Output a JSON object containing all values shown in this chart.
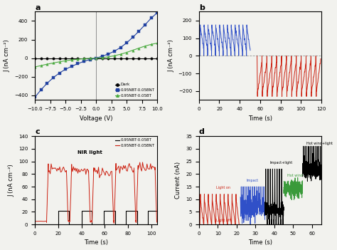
{
  "panel_a": {
    "voltage": [
      -10,
      -9,
      -8,
      -7,
      -6,
      -5,
      -4,
      -3,
      -2,
      -1,
      0,
      1,
      2,
      3,
      4,
      5,
      6,
      7,
      8,
      9,
      10
    ],
    "dark": [
      0,
      0,
      0,
      0,
      0,
      0,
      0,
      0,
      0,
      0,
      0,
      0,
      0,
      0,
      0,
      0,
      0,
      0,
      0,
      0,
      0
    ],
    "nbt_bnt": [
      -420,
      -340,
      -270,
      -210,
      -160,
      -120,
      -88,
      -60,
      -35,
      -15,
      0,
      20,
      45,
      75,
      115,
      165,
      225,
      290,
      360,
      430,
      490
    ],
    "nbt_bt": [
      -95,
      -80,
      -65,
      -52,
      -40,
      -28,
      -19,
      -12,
      -6,
      -2,
      0,
      5,
      14,
      26,
      42,
      62,
      85,
      108,
      130,
      148,
      162
    ],
    "ylabel": "J (nA cm⁻²)",
    "xlabel": "Voltage (V)",
    "title": "a",
    "legend": [
      "Dark",
      "0.95NBT-0.05BNT",
      "0.95NBT-0.05BT"
    ],
    "colors": [
      "black",
      "#2040a0",
      "#4aaa3f"
    ],
    "xlim": [
      -10,
      10
    ],
    "ylim": [
      -450,
      500
    ]
  },
  "panel_b": {
    "ylabel": "J (nA cm⁻²)",
    "xlabel": "Time (s)",
    "title": "b",
    "xlim": [
      0,
      120
    ],
    "ylim": [
      -250,
      250
    ],
    "blue_color": "#3050c8",
    "red_color": "#cc2010",
    "blue_n_pulses": 13,
    "blue_start": 1,
    "blue_period": 3.8,
    "blue_peak": 175,
    "blue_end": 52,
    "red_n_pulses": 13,
    "red_start": 57,
    "red_period": 4.8,
    "red_peak": -230,
    "red_end": 120
  },
  "panel_c": {
    "ylabel": "J (nA cm⁻²)",
    "xlabel": "Time (s)",
    "title": "c",
    "xlim": [
      0,
      105
    ],
    "ylim": [
      0,
      140
    ],
    "legend": [
      "0.95NBT-0.05BT",
      "0.95NBT-0.05BNT"
    ],
    "annotation": "NIR light",
    "black_on": [
      20,
      40,
      59,
      78,
      97
    ],
    "black_off": [
      29,
      49,
      69,
      88,
      105
    ],
    "black_peak": 22,
    "black_color": "black",
    "red_on": [
      10,
      30,
      49,
      68,
      87
    ],
    "red_off": [
      28,
      47,
      67,
      86,
      104
    ],
    "red_peaks": [
      94,
      93,
      91,
      96,
      98
    ],
    "red_base": 5,
    "red_color": "#cc2010"
  },
  "panel_d": {
    "ylabel": "Current (nA)",
    "xlabel": "Time (s)",
    "title": "d",
    "xlim": [
      0,
      65
    ],
    "ylim": [
      0,
      35
    ],
    "red_color": "#cc2010",
    "blue_color": "#3050c8",
    "green_color": "#3a9a3a",
    "black_color": "black",
    "red_end": 22,
    "blue_start": 22,
    "blue_end": 35,
    "black_spike_start": 35,
    "black_spike_end": 45,
    "green_start": 45,
    "green_end": 55,
    "black_start": 55,
    "black_end": 65,
    "red_peak": 12,
    "blue_base": 7,
    "blue_spike": 15,
    "black_spike_val": 22,
    "green_base": 14,
    "green_spike": 17,
    "black_base": 22,
    "black_spike2": 31
  },
  "figure_bg": "#f2f2ee"
}
